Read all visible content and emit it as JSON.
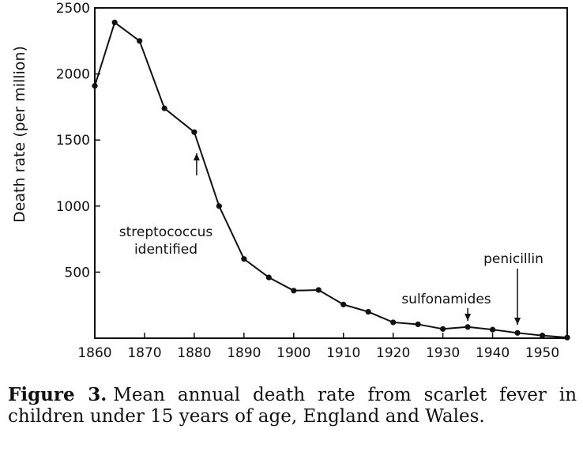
{
  "chart_data": {
    "type": "line",
    "title": "",
    "xlabel": "",
    "ylabel": "Death rate (per million)",
    "xlim": [
      1860,
      1955
    ],
    "ylim": [
      0,
      2500
    ],
    "x_ticks": [
      1860,
      1870,
      1880,
      1890,
      1900,
      1910,
      1920,
      1930,
      1940,
      1950
    ],
    "y_ticks": [
      500,
      1000,
      1500,
      2000,
      2500
    ],
    "grid": false,
    "series": [
      {
        "x": [
          1860,
          1864,
          1869,
          1874,
          1880,
          1885,
          1890,
          1895,
          1900,
          1905,
          1910,
          1915,
          1920,
          1925,
          1930,
          1935,
          1940,
          1945,
          1950,
          1955
        ],
        "y": [
          1910,
          2390,
          2250,
          1740,
          1560,
          1000,
          600,
          460,
          360,
          365,
          255,
          200,
          120,
          105,
          70,
          85,
          65,
          40,
          20,
          5
        ]
      }
    ],
    "annotations": [
      {
        "lines": [
          "streptococcus",
          "identified"
        ],
        "x": 1880,
        "y": 1560
      },
      {
        "lines": [
          "sulfonamides"
        ],
        "x": 1935,
        "y": 85
      },
      {
        "lines": [
          "penicillin"
        ],
        "x": 1945,
        "y": 40
      }
    ]
  },
  "caption": {
    "label": "Figure 3.",
    "text": "Mean annual death rate from scarlet fever in children under 15 years of age, England and Wales."
  }
}
